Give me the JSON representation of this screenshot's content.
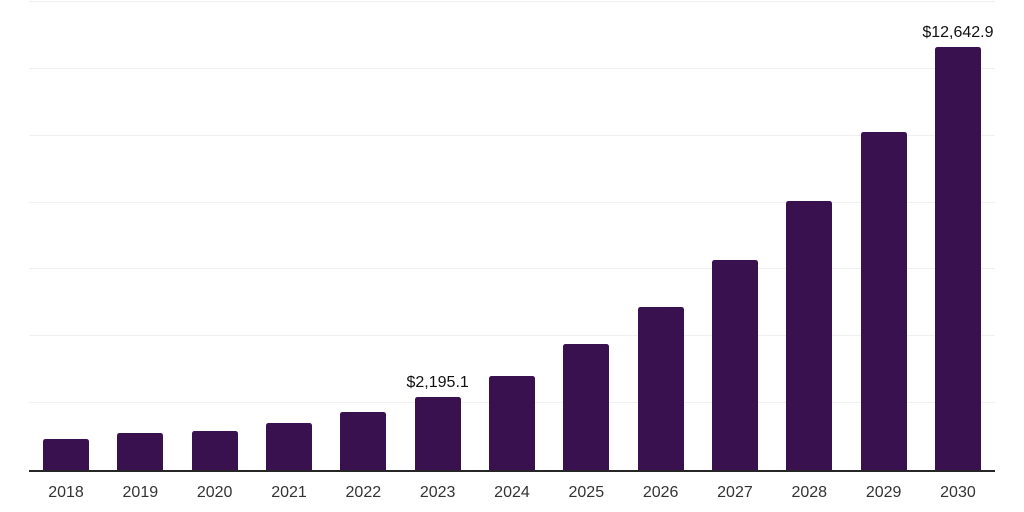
{
  "chart_data": {
    "type": "bar",
    "title": "",
    "xlabel": "",
    "ylabel": "",
    "ylim": [
      0,
      14000
    ],
    "gridline_interval": 2000,
    "grid": true,
    "legend_position": "none",
    "categories": [
      "2018",
      "2019",
      "2020",
      "2021",
      "2022",
      "2023",
      "2024",
      "2025",
      "2026",
      "2027",
      "2028",
      "2029",
      "2030"
    ],
    "values": [
      920,
      1110,
      1170,
      1410,
      1730,
      2195.1,
      2810,
      3770,
      4890,
      6290,
      8050,
      10120,
      12642.9
    ],
    "value_labels": [
      "",
      "",
      "",
      "",
      "",
      "$2,195.1",
      "",
      "",
      "",
      "",
      "",
      "",
      "$12,642.9"
    ]
  },
  "style": {
    "bar_color": "#38114E",
    "gridline_color": "#F0F0F0",
    "axis_line_color": "#262626",
    "tick_label_color": "#333333",
    "value_label_color": "#111111",
    "background_color": "#FFFFFF"
  }
}
